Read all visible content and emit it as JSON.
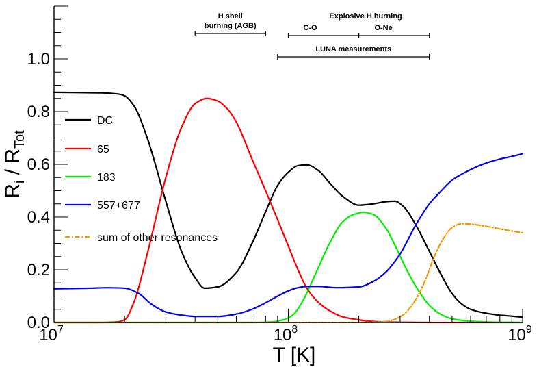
{
  "chart_data": {
    "type": "line",
    "title": "",
    "xlabel": "T [K]",
    "ylabel": "R_i / R_Tot",
    "xscale": "log",
    "xlim": [
      10000000.0,
      1000000000.0
    ],
    "ylim": [
      0,
      1.2
    ],
    "grid": false,
    "legend_position": "left",
    "x_ticks": [
      {
        "value": 10000000.0,
        "base": "10",
        "exp": "7"
      },
      {
        "value": 100000000.0,
        "base": "10",
        "exp": "8"
      },
      {
        "value": 1000000000.0,
        "base": "10",
        "exp": "9"
      }
    ],
    "y_ticks": [
      {
        "value": 0.0,
        "label": "0.0"
      },
      {
        "value": 0.2,
        "label": "0.2"
      },
      {
        "value": 0.4,
        "label": "0.4"
      },
      {
        "value": 0.6,
        "label": "0.6"
      },
      {
        "value": 0.8,
        "label": "0.8"
      },
      {
        "value": 1.0,
        "label": "1.0"
      }
    ],
    "series": [
      {
        "name": "DC",
        "color": "#000000",
        "dash": "",
        "x": [
          10000000.0,
          13000000.0,
          16000000.0,
          19000000.0,
          20000000.0,
          22000000.0,
          25000000.0,
          30000000.0,
          35000000.0,
          40000000.0,
          44000000.0,
          50000000.0,
          60000000.0,
          70000000.0,
          80000000.0,
          90000000.0,
          100000000.0,
          110000000.0,
          120000000.0,
          135000000.0,
          150000000.0,
          170000000.0,
          200000000.0,
          230000000.0,
          260000000.0,
          285000000.0,
          310000000.0,
          350000000.0,
          400000000.0,
          450000000.0,
          500000000.0,
          550000000.0,
          600000000.0,
          700000000.0,
          800000000.0,
          900000000.0,
          1000000000.0
        ],
        "y": [
          0.873,
          0.872,
          0.871,
          0.866,
          0.86,
          0.82,
          0.7,
          0.46,
          0.27,
          0.17,
          0.13,
          0.135,
          0.19,
          0.3,
          0.42,
          0.52,
          0.57,
          0.595,
          0.598,
          0.575,
          0.53,
          0.48,
          0.445,
          0.45,
          0.458,
          0.46,
          0.44,
          0.37,
          0.27,
          0.18,
          0.11,
          0.07,
          0.05,
          0.035,
          0.028,
          0.024,
          0.02
        ]
      },
      {
        "name": "65",
        "color": "#ff0000",
        "dash": "",
        "x": [
          10000000.0,
          15000000.0,
          18500000.0,
          20000000.0,
          22000000.0,
          25000000.0,
          30000000.0,
          35000000.0,
          40000000.0,
          45000000.0,
          50000000.0,
          55000000.0,
          60000000.0,
          70000000.0,
          80000000.0,
          90000000.0,
          100000000.0,
          110000000.0,
          120000000.0,
          135000000.0,
          150000000.0,
          170000000.0,
          200000000.0,
          230000000.0,
          260000000.0,
          300000000.0,
          400000000.0,
          1000000000.0
        ],
        "y": [
          0,
          0,
          0.002,
          0.01,
          0.08,
          0.26,
          0.55,
          0.74,
          0.83,
          0.85,
          0.84,
          0.81,
          0.76,
          0.62,
          0.5,
          0.39,
          0.29,
          0.2,
          0.13,
          0.075,
          0.045,
          0.022,
          0.01,
          0.004,
          0.002,
          0.001,
          0,
          0
        ]
      },
      {
        "name": "183",
        "color": "#00ee00",
        "dash": "",
        "x": [
          10000000.0,
          70000000.0,
          85000000.0,
          95000000.0,
          105000000.0,
          115000000.0,
          130000000.0,
          150000000.0,
          170000000.0,
          190000000.0,
          210000000.0,
          230000000.0,
          260000000.0,
          290000000.0,
          320000000.0,
          360000000.0,
          400000000.0,
          450000000.0,
          500000000.0,
          600000000.0,
          700000000.0,
          1000000000.0
        ],
        "y": [
          0,
          0,
          0.002,
          0.01,
          0.03,
          0.08,
          0.18,
          0.3,
          0.38,
          0.41,
          0.418,
          0.41,
          0.36,
          0.28,
          0.2,
          0.12,
          0.065,
          0.03,
          0.014,
          0.005,
          0.002,
          0
        ]
      },
      {
        "name": "557+677",
        "color": "#0000ee",
        "dash": "",
        "x": [
          10000000.0,
          14000000.0,
          17000000.0,
          20000000.0,
          23000000.0,
          26000000.0,
          30000000.0,
          35000000.0,
          40000000.0,
          50000000.0,
          60000000.0,
          70000000.0,
          80000000.0,
          90000000.0,
          100000000.0,
          110000000.0,
          120000000.0,
          135000000.0,
          160000000.0,
          200000000.0,
          230000000.0,
          260000000.0,
          300000000.0,
          350000000.0,
          400000000.0,
          450000000.0,
          500000000.0,
          600000000.0,
          700000000.0,
          800000000.0,
          900000000.0,
          1000000000.0
        ],
        "y": [
          0.128,
          0.13,
          0.132,
          0.13,
          0.11,
          0.07,
          0.04,
          0.028,
          0.023,
          0.023,
          0.032,
          0.05,
          0.075,
          0.1,
          0.12,
          0.132,
          0.137,
          0.137,
          0.132,
          0.135,
          0.155,
          0.19,
          0.26,
          0.37,
          0.45,
          0.5,
          0.54,
          0.58,
          0.605,
          0.62,
          0.63,
          0.64
        ]
      },
      {
        "name": "sum of other resonances",
        "color": "#ee9900",
        "dash": "7,3,1.5,3",
        "x": [
          10000000.0,
          200000000.0,
          250000000.0,
          280000000.0,
          310000000.0,
          340000000.0,
          380000000.0,
          420000000.0,
          460000000.0,
          500000000.0,
          550000000.0,
          600000000.0,
          700000000.0,
          800000000.0,
          900000000.0,
          1000000000.0
        ],
        "y": [
          0,
          0,
          0.002,
          0.01,
          0.03,
          0.07,
          0.15,
          0.25,
          0.32,
          0.36,
          0.375,
          0.373,
          0.365,
          0.355,
          0.347,
          0.34
        ]
      }
    ],
    "annotations": [
      {
        "lines": [
          "H shell",
          "burning (AGB)"
        ],
        "range": [
          40000000.0,
          80000000.0
        ]
      },
      {
        "lines": [
          "Explosive H burning"
        ],
        "sublabels": [
          "C-O",
          "O-Ne"
        ],
        "range": [
          100000000.0,
          200000000.0,
          400000000.0
        ]
      },
      {
        "lines": [
          "LUNA measurements"
        ],
        "range": [
          90000000.0,
          400000000.0
        ]
      }
    ]
  }
}
